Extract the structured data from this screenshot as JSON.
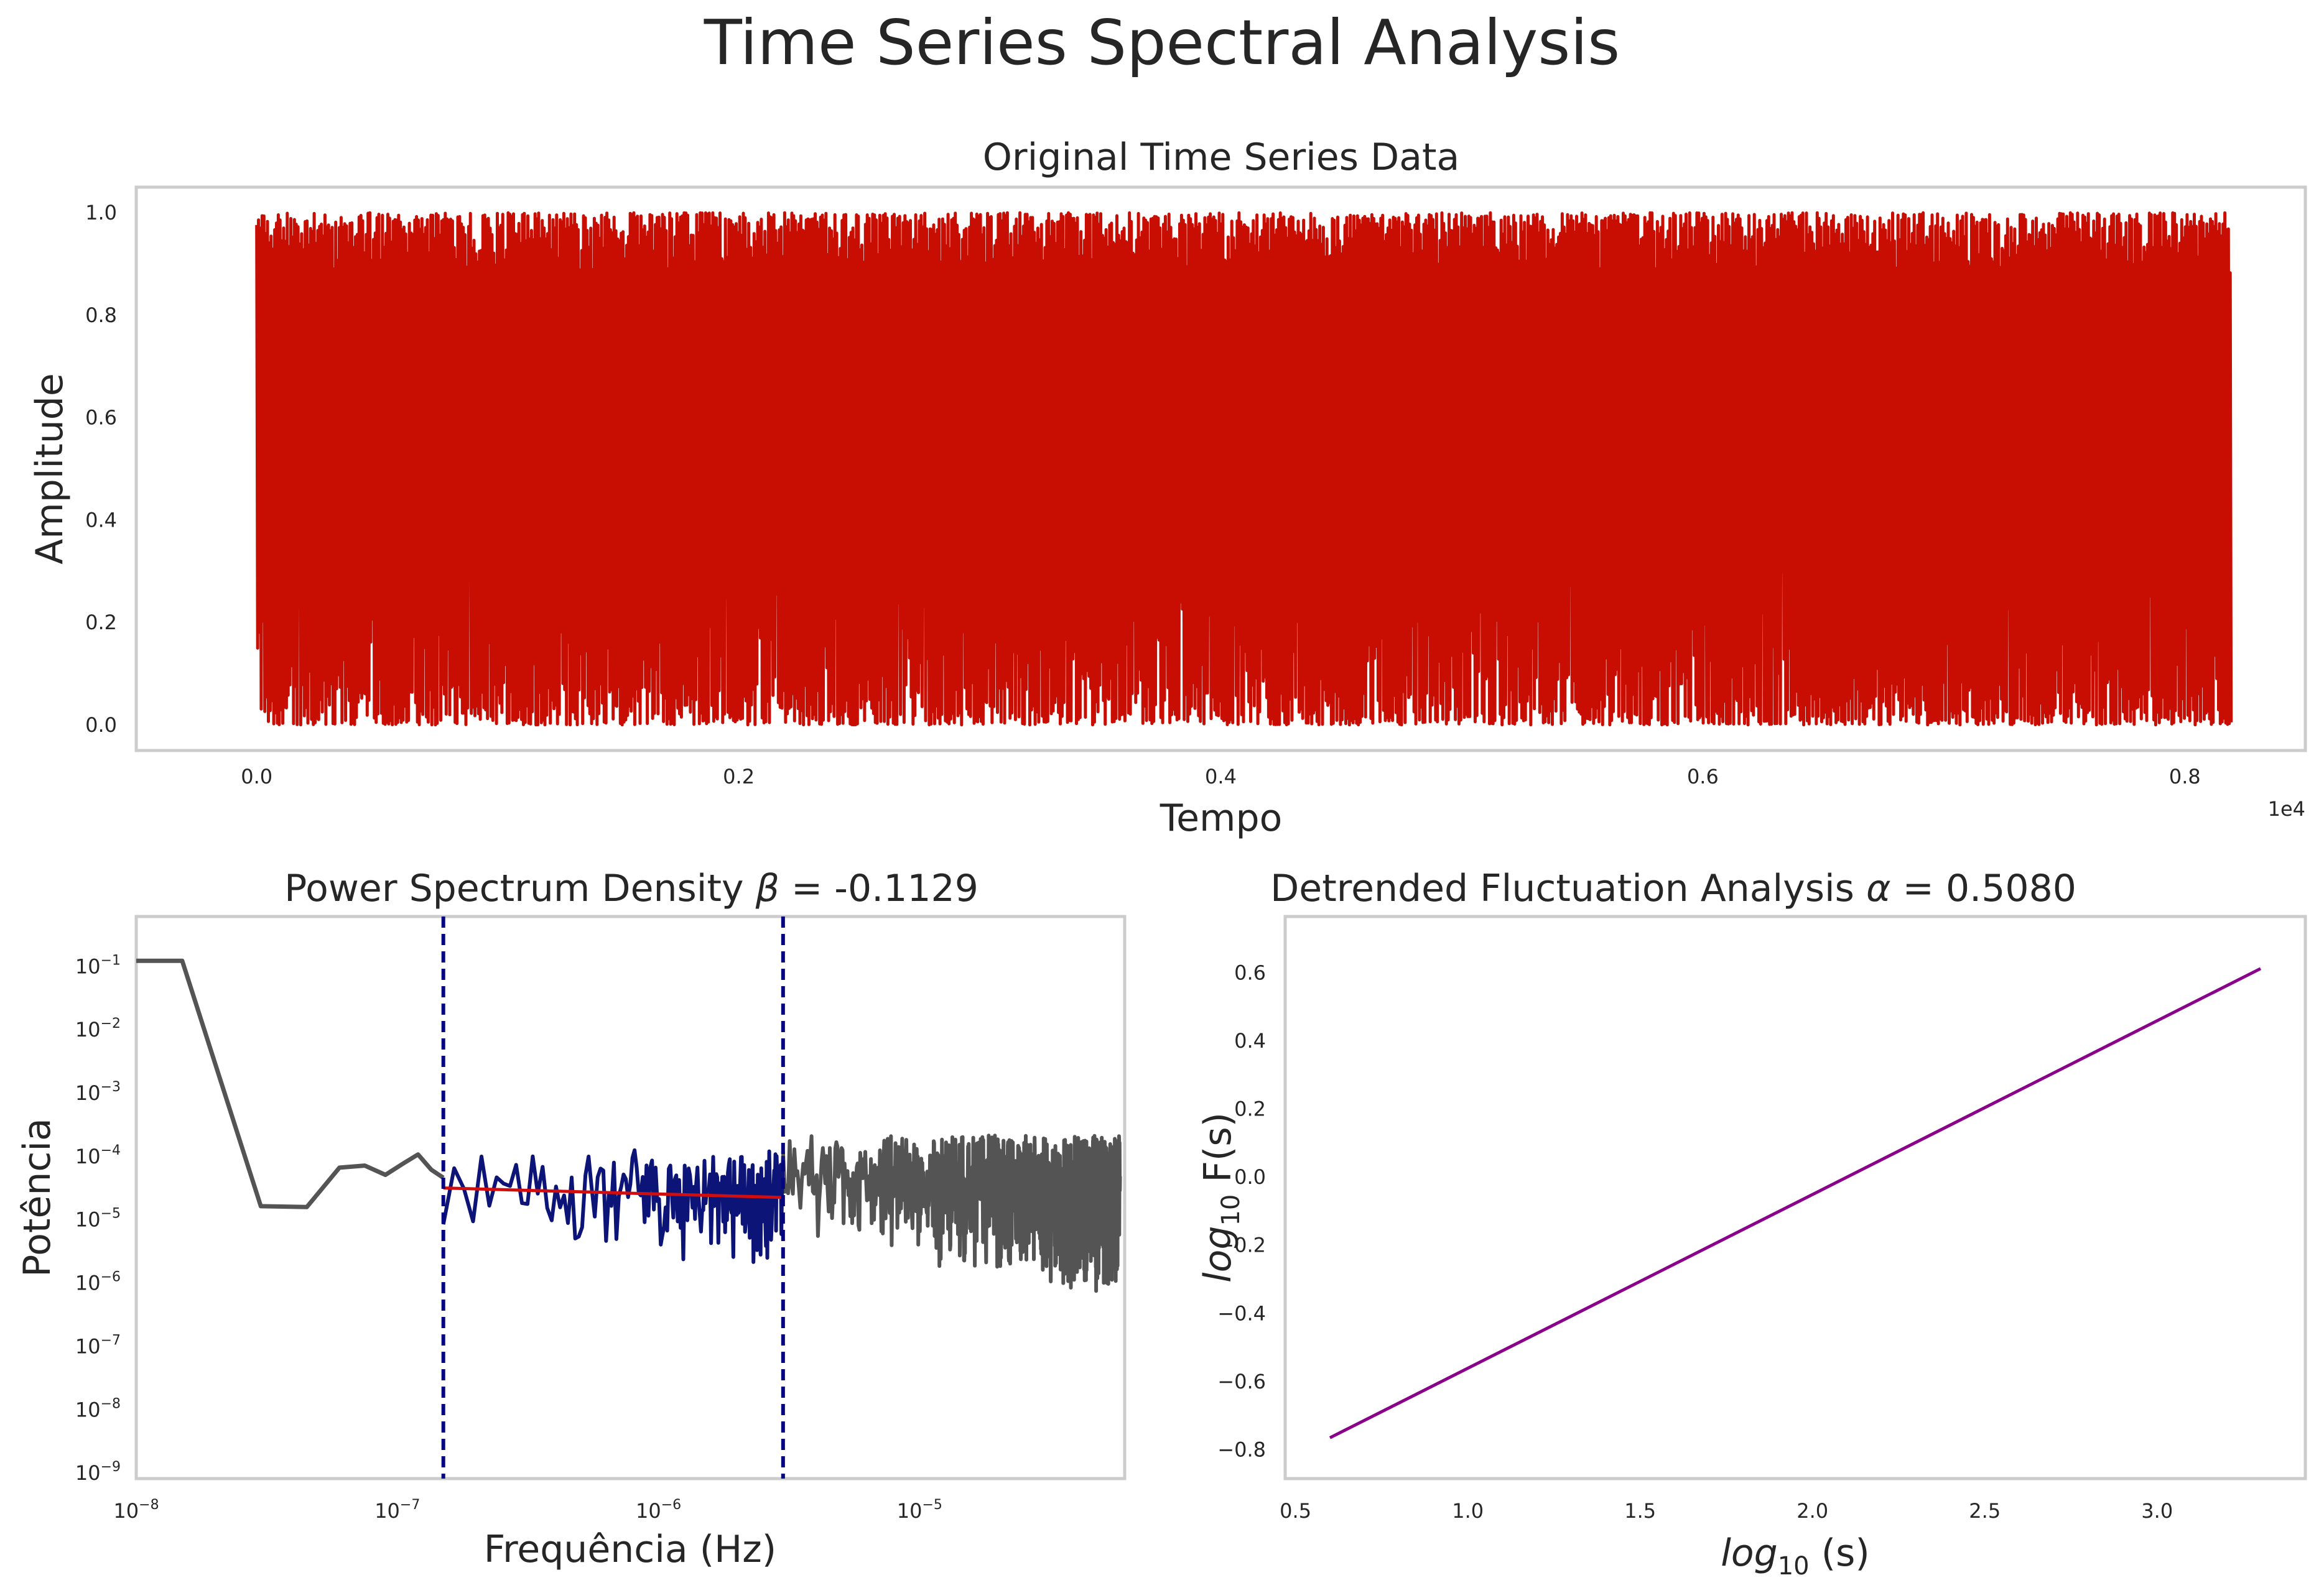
{
  "figure": {
    "suptitle": "Time Series Spectral Analysis"
  },
  "chart_data": [
    {
      "type": "line",
      "title": "Original Time Series Data",
      "xlabel": "Tempo",
      "ylabel": "Amplitude",
      "x_offset_text": "1e4",
      "xlim": [
        -0.05,
        0.85
      ],
      "ylim": [
        -0.05,
        1.05
      ],
      "xticks": [
        "0.0",
        "0.2",
        "0.4",
        "0.6",
        "0.8"
      ],
      "yticks": [
        "0.0",
        "0.2",
        "0.4",
        "0.6",
        "0.8",
        "1.0"
      ],
      "grid": false,
      "series": [
        {
          "color": "#c80d03",
          "x_range": [
            0,
            8192
          ],
          "y_range": [
            0.0,
            1.0
          ],
          "description_values": {
            "min": 0.0,
            "max": 1.0,
            "points_approx": 8192
          }
        }
      ]
    },
    {
      "type": "line",
      "title": "Power Spectrum Density",
      "title_symbol": "β",
      "title_value": "= -0.1129",
      "xlabel": "Frequência (Hz)",
      "ylabel": "Potência",
      "xscale": "log",
      "yscale": "log",
      "xlim": [
        1e-08,
        6.1e-05
      ],
      "ylim": [
        8e-10,
        0.6
      ],
      "xticks": [
        {
          "base": "10",
          "exp": "−8"
        },
        {
          "base": "10",
          "exp": "−7"
        },
        {
          "base": "10",
          "exp": "−6"
        },
        {
          "base": "10",
          "exp": "−5"
        }
      ],
      "yticks": [
        {
          "base": "10",
          "exp": "−1"
        },
        {
          "base": "10",
          "exp": "−2"
        },
        {
          "base": "10",
          "exp": "−3"
        },
        {
          "base": "10",
          "exp": "−4"
        },
        {
          "base": "10",
          "exp": "−5"
        },
        {
          "base": "10",
          "exp": "−6"
        },
        {
          "base": "10",
          "exp": "−7"
        },
        {
          "base": "10",
          "exp": "−8"
        },
        {
          "base": "10",
          "exp": "−9"
        }
      ],
      "grid": false,
      "colors": {
        "full": "#545454",
        "fit_range": "#0d1478",
        "fit": "#d10d0d",
        "bounds": "#050580"
      },
      "bounds_x": [
        1.5e-07,
        3e-06
      ],
      "fit": {
        "x": [
          1.5e-07,
          3e-06
        ],
        "y": [
          3.1e-05,
          2.2e-05
        ]
      },
      "series_low_freq": {
        "x": [
          1e-08,
          1.5e-08,
          3e-08,
          4.5e-08,
          6e-08,
          7.5e-08,
          9e-08,
          1.05e-07,
          1.2e-07,
          1.35e-07,
          1.5e-07
        ],
        "y": [
          0.12,
          0.12,
          1.6e-05,
          1.55e-05,
          6.5e-05,
          7e-05,
          5e-05,
          7.5e-05,
          0.000105,
          6e-05,
          4.5e-05
        ]
      }
    },
    {
      "type": "line",
      "title": "Detrended Fluctuation Analysis",
      "title_symbol": "α",
      "title_value": "= 0.5080",
      "xlabel_main": "log",
      "xlabel_sub": "10",
      "xlabel_rest": "(s)",
      "ylabel_main": "log",
      "ylabel_sub": "10",
      "ylabel_rest": "F(s)",
      "xlim": [
        0.47,
        3.43
      ],
      "ylim": [
        -0.885,
        0.765
      ],
      "xticks": [
        "0.5",
        "1.0",
        "1.5",
        "2.0",
        "2.5",
        "3.0"
      ],
      "yticks": [
        "0.6",
        "0.4",
        "0.2",
        "0.0",
        "−0.2",
        "−0.4",
        "−0.6",
        "−0.8"
      ],
      "grid": false,
      "series": [
        {
          "color": "#8b008b",
          "x": [
            0.6,
            3.3
          ],
          "y": [
            -0.765,
            0.612
          ]
        }
      ]
    }
  ]
}
